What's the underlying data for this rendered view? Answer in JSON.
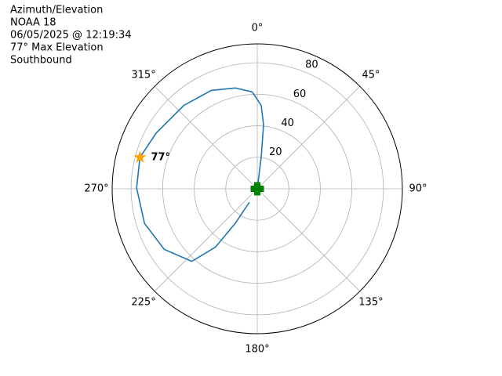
{
  "chart_data": {
    "type": "polar",
    "title": [
      "Azimuth/Elevation",
      "NOAA 18",
      "06/05/2025 @ 12:19:34",
      "77° Max Elevation",
      "Southbound"
    ],
    "theta": [
      210.5,
      212.5,
      215.6,
      222,
      236.9,
      252.9,
      270.4,
      285,
      299,
      318.7,
      335,
      347.7,
      357,
      2.7,
      5.6,
      7,
      0
    ],
    "values": [
      9.9,
      26,
      45.5,
      62,
      70.4,
      74.8,
      76.5,
      77,
      73.2,
      70.5,
      68.9,
      65.5,
      61.6,
      53,
      40.7,
      20.6,
      0
    ],
    "color": "#1f77b4",
    "start": {
      "theta": 0,
      "r": 0,
      "color": "#008000"
    },
    "max": {
      "theta": 285,
      "r": 77,
      "value_label": "77°",
      "color": "#ffa500"
    },
    "rlim": [
      0,
      92
    ],
    "rticks": [
      20,
      40,
      60,
      80
    ],
    "thetaticks": [
      {
        "value": 0,
        "label": "0°"
      },
      {
        "value": 45,
        "label": "45°"
      },
      {
        "value": 90,
        "label": "90°"
      },
      {
        "value": 135,
        "label": "135°"
      },
      {
        "value": 180,
        "label": "180°"
      },
      {
        "value": 225,
        "label": "225°"
      },
      {
        "value": 270,
        "label": "270°"
      },
      {
        "value": 315,
        "label": "315°"
      }
    ],
    "grid": true
  }
}
